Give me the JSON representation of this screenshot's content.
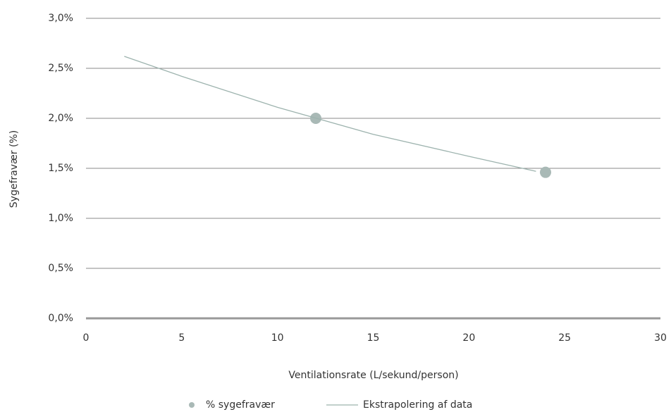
{
  "chart_data": {
    "type": "scatter",
    "x_label": "Ventilationsrate  (L/sekund/person)",
    "y_label": "Sygefravær (%)",
    "xlim": [
      0,
      30
    ],
    "xticks": [
      0,
      5,
      10,
      15,
      20,
      25,
      30
    ],
    "ylim": [
      0,
      3
    ],
    "yticks": [
      {
        "value": 0,
        "label": "0,0%"
      },
      {
        "value": 0.5,
        "label": "0,5%"
      },
      {
        "value": 1,
        "label": "1,0%"
      },
      {
        "value": 1.5,
        "label": "1,5%"
      },
      {
        "value": 2,
        "label": "2,0%"
      },
      {
        "value": 2.5,
        "label": "2,5%"
      },
      {
        "value": 3,
        "label": "3,0%"
      }
    ],
    "grid": true,
    "legend": "bottom",
    "series": [
      {
        "name": "% sygefravær",
        "type": "scatter",
        "color": "#a9b9b6",
        "x": [
          12,
          24
        ],
        "values": [
          2.0,
          1.46
        ]
      },
      {
        "name": "Ekstrapolering af data",
        "type": "line",
        "color": "#9db3ae",
        "x": [
          2,
          5,
          10,
          15,
          20,
          23.5
        ],
        "values": [
          2.62,
          2.42,
          2.11,
          1.84,
          1.62,
          1.47
        ]
      }
    ]
  }
}
